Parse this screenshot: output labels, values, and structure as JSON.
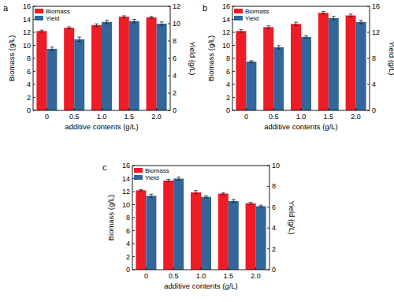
{
  "chart_data": [
    {
      "type": "bar",
      "title": "a",
      "xlabel": "additive contents (g/L)",
      "ylabel": "Biomass (g/L)",
      "y2label": "Yield (g/L)",
      "categories": [
        "0",
        "0.5",
        "1.0",
        "1.5",
        "2.0"
      ],
      "ylim": [
        0,
        16
      ],
      "yticks": [
        0,
        2,
        4,
        6,
        8,
        10,
        12,
        14,
        16
      ],
      "y2lim": [
        0,
        12
      ],
      "y2ticks": [
        0,
        2,
        4,
        6,
        8,
        10,
        12
      ],
      "grid": false,
      "legend": "upper left",
      "series": [
        {
          "name": "Biomass",
          "color": "#ee1c25",
          "values": [
            12.2,
            12.7,
            13.1,
            14.4,
            14.3
          ],
          "errors": [
            0.15,
            0.15,
            0.2,
            0.15,
            0.15
          ]
        },
        {
          "name": "Yield",
          "color": "#33669a",
          "axis": "y2",
          "values": [
            7.1,
            8.2,
            10.2,
            10.3,
            10.0
          ],
          "errors": [
            0.2,
            0.25,
            0.2,
            0.2,
            0.2
          ]
        }
      ]
    },
    {
      "type": "bar",
      "title": "b",
      "xlabel": "additive contents (g/L)",
      "ylabel": "Biomass (g/L)",
      "y2label": "Yield (g/L)",
      "categories": [
        "0",
        "0.5",
        "1.0",
        "1.5",
        "2.0"
      ],
      "ylim": [
        0,
        16
      ],
      "yticks": [
        0,
        2,
        4,
        6,
        8,
        10,
        12,
        14,
        16
      ],
      "y2lim": [
        0,
        16
      ],
      "y2ticks": [
        0,
        4,
        8,
        12,
        16
      ],
      "grid": false,
      "legend": "upper left",
      "series": [
        {
          "name": "Biomass",
          "color": "#ee1c25",
          "values": [
            12.2,
            12.8,
            13.3,
            15.0,
            14.6
          ],
          "errors": [
            0.2,
            0.2,
            0.25,
            0.2,
            0.2
          ]
        },
        {
          "name": "Yield",
          "color": "#33669a",
          "axis": "y2",
          "values": [
            7.5,
            9.7,
            11.3,
            14.2,
            13.6
          ],
          "errors": [
            0.15,
            0.25,
            0.2,
            0.25,
            0.25
          ]
        }
      ]
    },
    {
      "type": "bar",
      "title": "c",
      "xlabel": "additive contents (g/L)",
      "ylabel": "Biomass (g/L)",
      "y2label": "Yield (g/L)",
      "categories": [
        "0",
        "0.5",
        "1.0",
        "1.5",
        "2.0"
      ],
      "ylim": [
        0,
        16
      ],
      "yticks": [
        0,
        2,
        4,
        6,
        8,
        10,
        12,
        14,
        16
      ],
      "y2lim": [
        0,
        10
      ],
      "y2ticks": [
        0,
        2,
        4,
        6,
        8,
        10
      ],
      "grid": false,
      "legend": "upper left",
      "series": [
        {
          "name": "Biomass",
          "color": "#ee1c25",
          "values": [
            12.2,
            13.7,
            11.9,
            11.7,
            10.2
          ],
          "errors": [
            0.1,
            0.2,
            0.25,
            0.15,
            0.15
          ]
        },
        {
          "name": "Yield",
          "color": "#33669a",
          "axis": "y2",
          "values": [
            7.1,
            8.75,
            7.0,
            6.6,
            6.1
          ],
          "errors": [
            0.15,
            0.15,
            0.1,
            0.15,
            0.1
          ]
        }
      ]
    }
  ]
}
